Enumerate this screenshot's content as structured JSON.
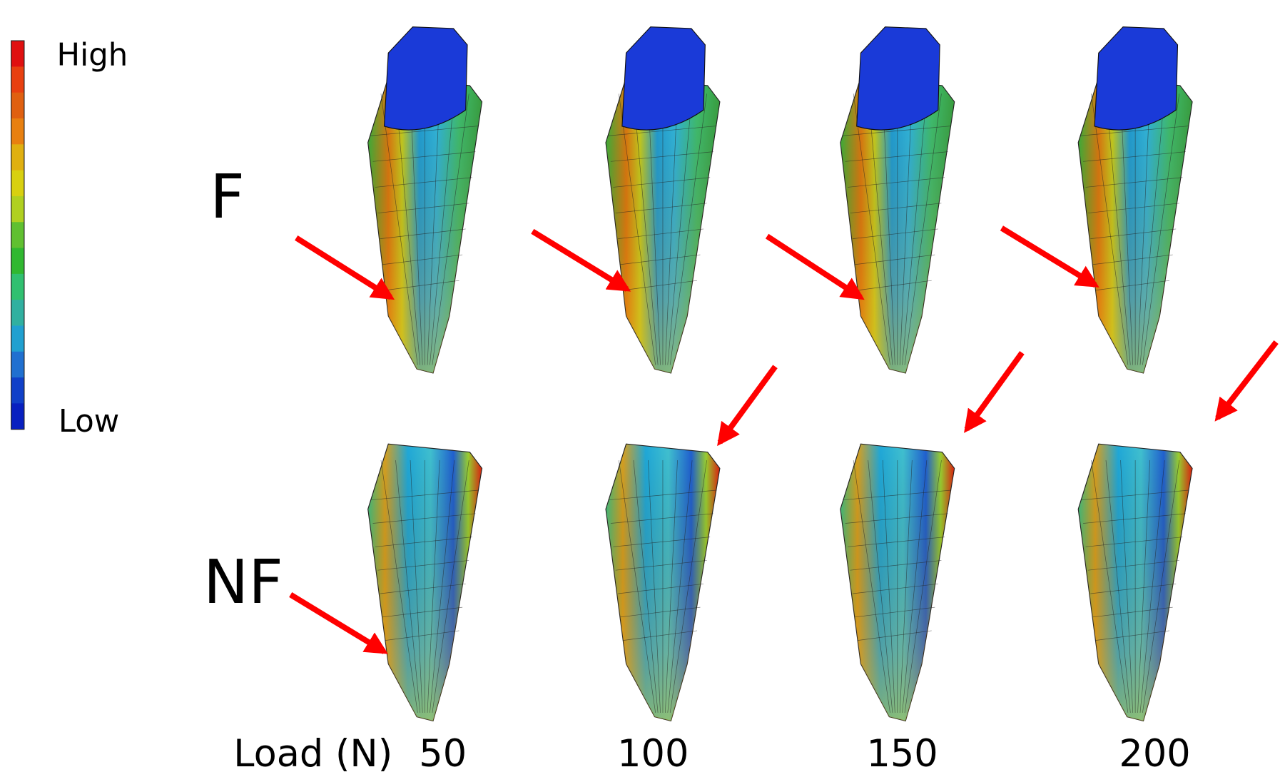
{
  "legend": {
    "high": "High",
    "low": "Low"
  },
  "rows": [
    {
      "label": "F"
    },
    {
      "label": "NF"
    }
  ],
  "x_axis": {
    "label": "Load (N)",
    "loads": [
      50,
      100,
      150,
      200
    ]
  }
}
